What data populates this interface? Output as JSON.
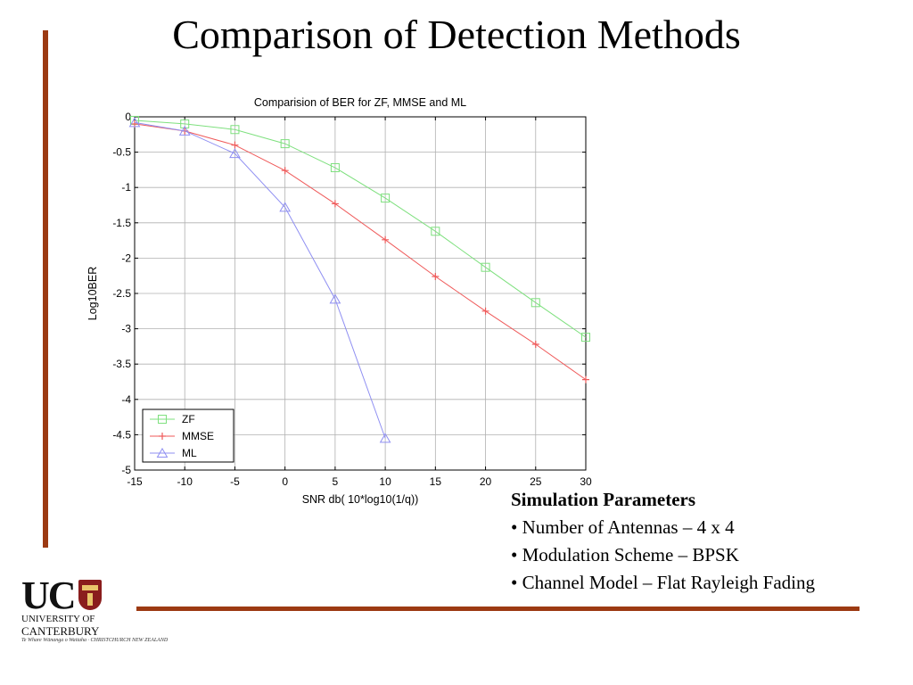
{
  "slide": {
    "title": "Comparison of Detection Methods",
    "accent_color": "#9c3a12"
  },
  "params": {
    "heading": "Simulation Parameters",
    "items": [
      "• Number of Antennas – 4 x 4",
      "• Modulation Scheme – BPSK",
      "• Channel Model – Flat Rayleigh Fading"
    ]
  },
  "logo": {
    "text": "UC",
    "line1": "UNIVERSITY OF",
    "line2": "CANTERBURY",
    "motto": "Te Whare Wānanga o Waitaha · CHRISTCHURCH NEW ZEALAND",
    "icon": "crest-icon"
  },
  "chart_data": {
    "type": "line",
    "title": "Comparision of BER for ZF, MMSE and ML",
    "xlabel": "SNR db( 10*log10(1/q))",
    "ylabel": "Log10BER",
    "xlim": [
      -15,
      30
    ],
    "ylim": [
      -5,
      0
    ],
    "xticks": [
      -15,
      -10,
      -5,
      0,
      5,
      10,
      15,
      20,
      25,
      30
    ],
    "yticks": [
      0,
      -0.5,
      -1,
      -1.5,
      -2,
      -2.5,
      -3,
      -3.5,
      -4,
      -4.5,
      -5
    ],
    "grid": true,
    "legend_position": "bottom-left",
    "series": [
      {
        "name": "ZF",
        "color": "#7ee07e",
        "marker": "square",
        "x": [
          -15,
          -10,
          -5,
          0,
          5,
          10,
          15,
          20,
          25,
          30
        ],
        "y": [
          -0.05,
          -0.1,
          -0.18,
          -0.38,
          -0.72,
          -1.15,
          -1.62,
          -2.13,
          -2.63,
          -3.12
        ]
      },
      {
        "name": "MMSE",
        "color": "#ef5a5a",
        "marker": "plus",
        "x": [
          -15,
          -10,
          -5,
          0,
          5,
          10,
          15,
          20,
          25,
          30
        ],
        "y": [
          -0.1,
          -0.2,
          -0.4,
          -0.76,
          -1.23,
          -1.74,
          -2.26,
          -2.75,
          -3.22,
          -3.72
        ]
      },
      {
        "name": "ML",
        "color": "#8f8ff2",
        "marker": "triangle",
        "x": [
          -15,
          -10,
          -5,
          0,
          5,
          10
        ],
        "y": [
          -0.08,
          -0.2,
          -0.52,
          -1.28,
          -2.58,
          -4.55
        ]
      }
    ]
  }
}
